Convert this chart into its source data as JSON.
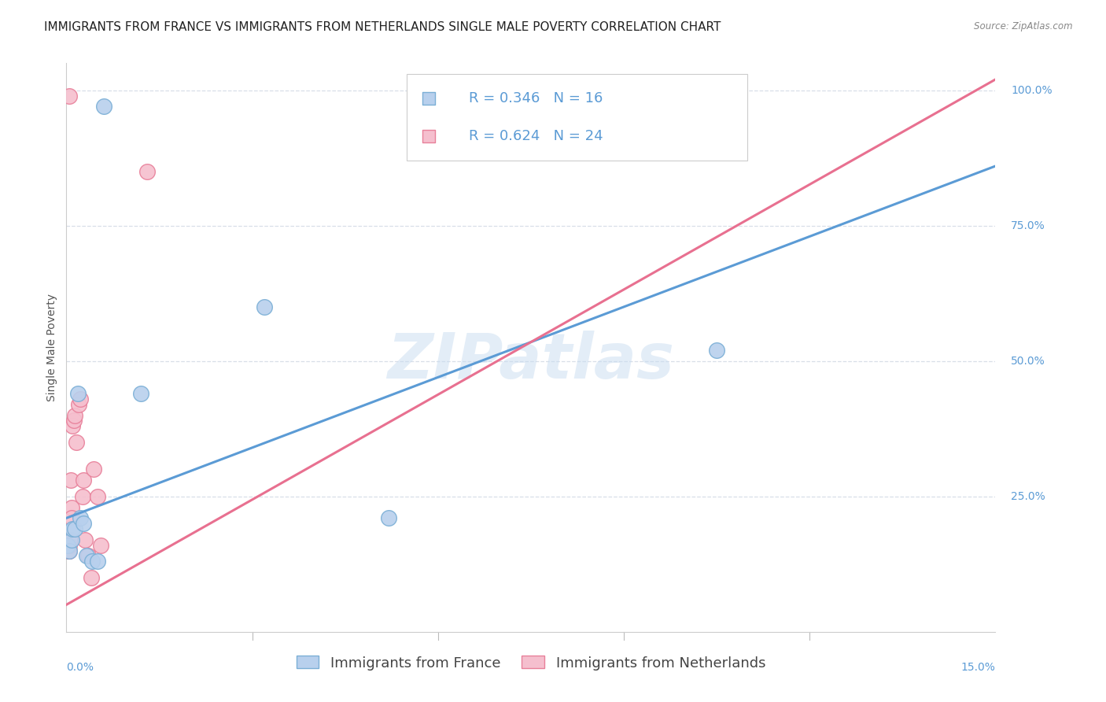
{
  "title": "IMMIGRANTS FROM FRANCE VS IMMIGRANTS FROM NETHERLANDS SINGLE MALE POVERTY CORRELATION CHART",
  "source": "Source: ZipAtlas.com",
  "ylabel": "Single Male Poverty",
  "xlim": [
    0.0,
    15.0
  ],
  "ylim": [
    0.0,
    105.0
  ],
  "series_france": {
    "label": "Immigrants from France",
    "color_fill": "#b8d0ed",
    "color_edge": "#7bafd6",
    "R": 0.346,
    "N": 16,
    "line_color": "#5b9bd5",
    "points": [
      [
        0.02,
        16
      ],
      [
        0.05,
        15
      ],
      [
        0.08,
        17
      ],
      [
        0.1,
        19
      ],
      [
        0.14,
        19
      ],
      [
        0.18,
        44
      ],
      [
        0.22,
        21
      ],
      [
        0.28,
        20
      ],
      [
        0.32,
        14
      ],
      [
        0.42,
        13
      ],
      [
        0.5,
        13
      ],
      [
        0.6,
        97
      ],
      [
        1.2,
        44
      ],
      [
        3.2,
        60
      ],
      [
        5.2,
        21
      ],
      [
        10.5,
        52
      ]
    ],
    "trend_x0": 0.0,
    "trend_y0": 21,
    "trend_x1": 15.0,
    "trend_y1": 86
  },
  "series_netherlands": {
    "label": "Immigrants from Netherlands",
    "color_fill": "#f5bfce",
    "color_edge": "#e8809a",
    "R": 0.624,
    "N": 24,
    "line_color": "#e87090",
    "points": [
      [
        0.02,
        16
      ],
      [
        0.03,
        15
      ],
      [
        0.04,
        15
      ],
      [
        0.05,
        16
      ],
      [
        0.06,
        17
      ],
      [
        0.07,
        28
      ],
      [
        0.08,
        23
      ],
      [
        0.09,
        21
      ],
      [
        0.1,
        38
      ],
      [
        0.12,
        39
      ],
      [
        0.14,
        40
      ],
      [
        0.16,
        35
      ],
      [
        0.2,
        42
      ],
      [
        0.22,
        43
      ],
      [
        0.26,
        25
      ],
      [
        0.28,
        28
      ],
      [
        0.3,
        17
      ],
      [
        0.35,
        14
      ],
      [
        0.4,
        10
      ],
      [
        0.44,
        30
      ],
      [
        0.5,
        25
      ],
      [
        0.55,
        16
      ],
      [
        0.05,
        99
      ],
      [
        1.3,
        85
      ]
    ],
    "trend_x0": 0.0,
    "trend_y0": 5,
    "trend_x1": 15.0,
    "trend_y1": 102
  },
  "watermark": "ZIPatlas",
  "background_color": "#ffffff",
  "grid_color": "#d8dfe8",
  "title_fontsize": 11,
  "axis_label_fontsize": 10,
  "tick_fontsize": 10,
  "legend_fontsize": 13
}
